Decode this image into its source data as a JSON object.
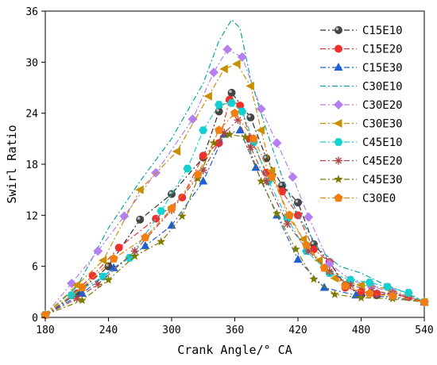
{
  "chart_data": {
    "type": "line",
    "title": "",
    "xlabel": "Crank Angle/° CA",
    "ylabel": "Swirl Ratio",
    "xlim": [
      180,
      540
    ],
    "ylim": [
      0,
      36
    ],
    "xticks": [
      180,
      240,
      300,
      360,
      420,
      480,
      540
    ],
    "yticks": [
      0,
      6,
      12,
      18,
      24,
      30,
      36
    ],
    "grid": false,
    "legend_position": "top-right",
    "series": [
      {
        "name": "C15E10",
        "color": "#303030",
        "marker": "sphere",
        "x": [
          180,
          210,
          240,
          270,
          300,
          330,
          345,
          357,
          375,
          390,
          405,
          420,
          435,
          450,
          465,
          480,
          495,
          510,
          525,
          540
        ],
        "y": [
          0.3,
          2.8,
          6.0,
          11.5,
          14.5,
          18.8,
          24.2,
          26.4,
          23.5,
          18.7,
          15.5,
          13.5,
          8.6,
          6.5,
          3.8,
          2.6,
          2.6,
          2.9,
          2.4,
          1.8
        ]
      },
      {
        "name": "C15E20",
        "color": "#ee3030",
        "marker": "circle",
        "x": [
          180,
          205,
          225,
          250,
          285,
          310,
          330,
          345,
          355,
          365,
          375,
          390,
          405,
          420,
          435,
          450,
          465,
          480,
          495,
          510,
          525,
          540
        ],
        "y": [
          0.3,
          2.6,
          4.9,
          8.2,
          11.6,
          14.1,
          19.0,
          20.5,
          25.6,
          24.9,
          21.0,
          17.0,
          14.8,
          12.0,
          8.0,
          6.5,
          3.5,
          3.0,
          2.8,
          2.7,
          2.4,
          1.8
        ]
      },
      {
        "name": "C15E30",
        "color": "#1e5fd1",
        "marker": "triangle",
        "x": [
          180,
          215,
          245,
          275,
          300,
          330,
          350,
          365,
          380,
          400,
          420,
          445,
          475,
          510,
          540
        ],
        "y": [
          0.3,
          2.8,
          5.8,
          8.4,
          10.8,
          16.0,
          21.5,
          22.0,
          17.6,
          12.0,
          6.8,
          3.5,
          2.6,
          2.4,
          1.8
        ]
      },
      {
        "name": "C30E10",
        "color": "#0aa6a0",
        "marker": "none",
        "x": [
          180,
          210,
          240,
          270,
          300,
          330,
          345,
          357,
          365,
          375,
          390,
          405,
          420,
          440,
          460,
          480,
          500,
          520,
          540
        ],
        "y": [
          0.3,
          3.6,
          10.5,
          16.0,
          21.0,
          27.5,
          32.5,
          35.0,
          34.0,
          28.0,
          22.0,
          16.5,
          12.0,
          8.0,
          6.0,
          5.2,
          4.0,
          3.0,
          1.8
        ]
      },
      {
        "name": "C30E20",
        "color": "#b47ff0",
        "marker": "diamond",
        "x": [
          180,
          205,
          230,
          255,
          285,
          320,
          340,
          353,
          367,
          385,
          400,
          415,
          430,
          450,
          470,
          490,
          510,
          540
        ],
        "y": [
          0.3,
          4.0,
          7.8,
          11.9,
          17.0,
          23.3,
          28.8,
          31.5,
          30.6,
          24.5,
          20.5,
          16.5,
          11.8,
          6.3,
          4.4,
          3.6,
          3.0,
          1.8
        ]
      },
      {
        "name": "C30E30",
        "color": "#c89000",
        "marker": "triangle-left",
        "x": [
          180,
          210,
          235,
          270,
          305,
          335,
          350,
          362,
          375,
          385,
          395,
          410,
          425,
          440,
          455,
          480,
          505,
          540
        ],
        "y": [
          0.3,
          3.8,
          6.7,
          15.0,
          19.5,
          26.0,
          29.2,
          29.8,
          27.2,
          22.0,
          17.2,
          12.0,
          9.2,
          6.7,
          4.6,
          3.8,
          3.4,
          1.8
        ]
      },
      {
        "name": "C45E10",
        "color": "#15d0d0",
        "marker": "hexagon",
        "x": [
          180,
          205,
          235,
          260,
          290,
          315,
          330,
          345,
          357,
          367,
          378,
          392,
          410,
          428,
          450,
          470,
          488,
          505,
          525,
          540
        ],
        "y": [
          0.3,
          2.6,
          4.8,
          7.0,
          12.5,
          17.5,
          22.0,
          25.0,
          25.2,
          24.2,
          20.6,
          16.0,
          11.6,
          7.8,
          5.2,
          4.4,
          4.1,
          3.6,
          2.9,
          1.8
        ]
      },
      {
        "name": "C45E20",
        "color": "#b04545",
        "marker": "asterisk",
        "x": [
          180,
          210,
          230,
          265,
          300,
          330,
          350,
          363,
          375,
          390,
          410,
          430,
          450,
          470,
          490,
          510,
          540
        ],
        "y": [
          0.3,
          2.2,
          3.9,
          7.8,
          12.6,
          17.3,
          21.7,
          23.2,
          20.0,
          16.0,
          11.0,
          7.8,
          5.4,
          3.8,
          3.1,
          2.8,
          1.8
        ]
      },
      {
        "name": "C45E30",
        "color": "#7e7a00",
        "marker": "star",
        "x": [
          180,
          215,
          240,
          265,
          290,
          310,
          325,
          340,
          355,
          370,
          385,
          400,
          418,
          435,
          455,
          480,
          510,
          540
        ],
        "y": [
          0.3,
          2.0,
          4.4,
          7.2,
          8.9,
          11.9,
          16.3,
          20.5,
          21.5,
          21.2,
          16.0,
          12.2,
          8.0,
          4.5,
          2.7,
          2.3,
          2.2,
          1.8
        ]
      },
      {
        "name": "C30E0",
        "color": "#f07e10",
        "marker": "pentagon",
        "x": [
          180,
          215,
          245,
          275,
          300,
          325,
          345,
          360,
          378,
          395,
          412,
          428,
          445,
          465,
          488,
          510,
          540
        ],
        "y": [
          0.3,
          3.5,
          6.9,
          9.4,
          12.8,
          16.8,
          22.0,
          24.0,
          21.0,
          16.5,
          12.0,
          8.5,
          5.8,
          3.7,
          2.8,
          2.5,
          1.8
        ]
      }
    ]
  }
}
